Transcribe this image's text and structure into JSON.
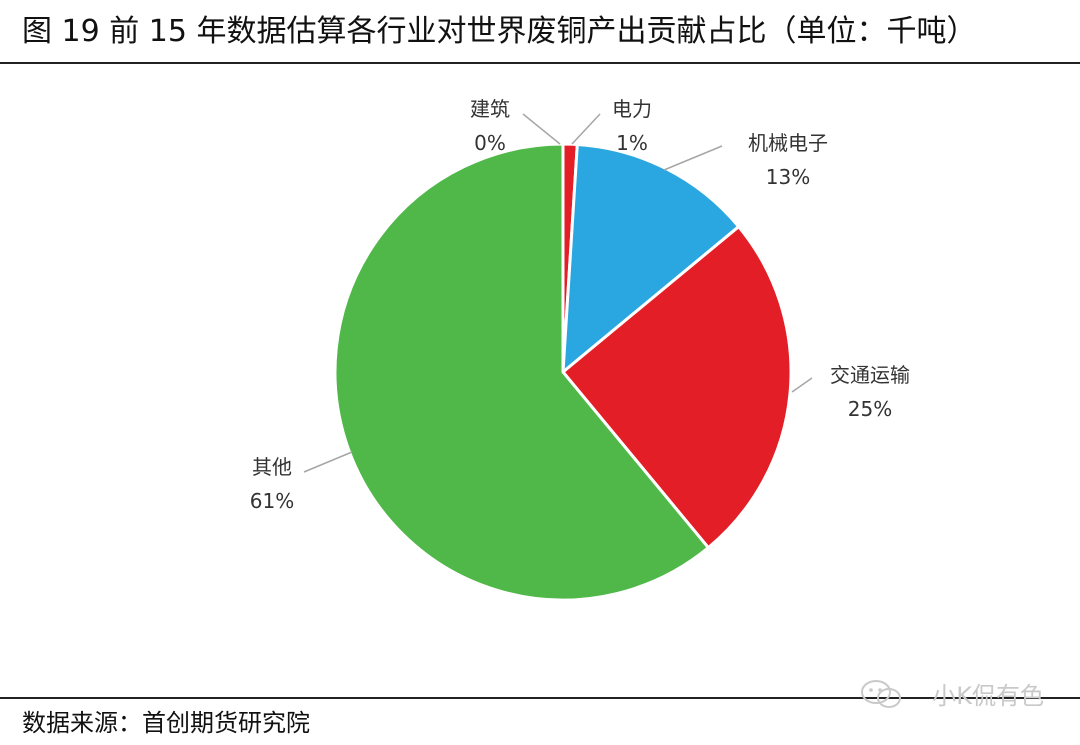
{
  "title": "图 19 前 15 年数据估算各行业对世界废铜产出贡献占比（单位：千吨）",
  "source": "数据来源：首创期货研究院",
  "watermark": "小K侃有色",
  "chart_data": {
    "type": "pie",
    "title": "",
    "slices": [
      {
        "label": "建筑",
        "value": 0,
        "value_label": "0%",
        "color": "#7f7f7f"
      },
      {
        "label": "电力",
        "value": 1,
        "value_label": "1%",
        "color": "#e41e26"
      },
      {
        "label": "机械电子",
        "value": 13,
        "value_label": "13%",
        "color": "#2aa7e0"
      },
      {
        "label": "交通运输",
        "value": 25,
        "value_label": "25%",
        "color": "#e41e26"
      },
      {
        "label": "其他",
        "value": 61,
        "value_label": "61%",
        "color": "#4fb849"
      }
    ]
  }
}
